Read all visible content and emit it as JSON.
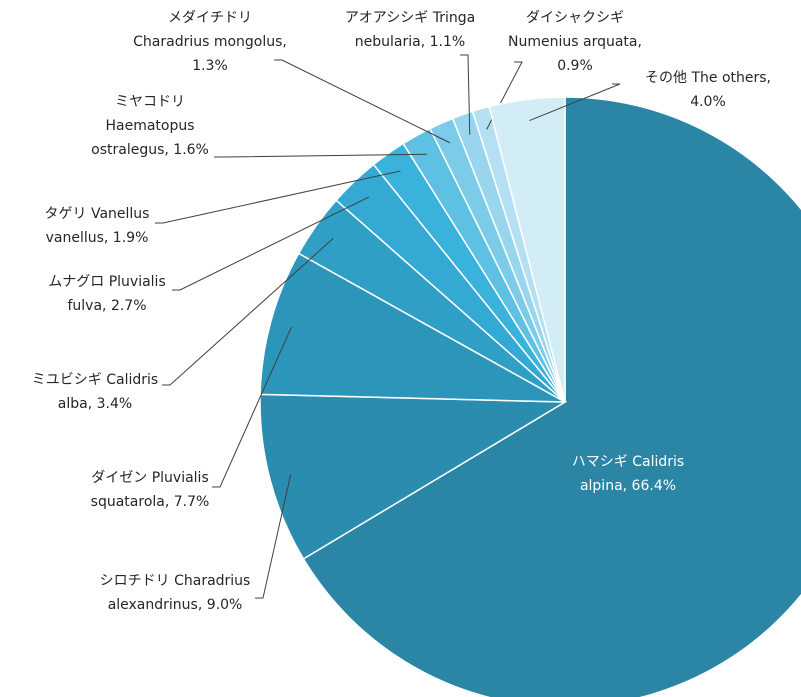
{
  "chart_data": {
    "type": "pie",
    "labels": [
      [
        "ハマシギ Calidris",
        "alpina, 66.4%"
      ],
      [
        "シロチドリ Charadrius",
        "alexandrinus, 9.0%"
      ],
      [
        "ダイゼン Pluvialis",
        "squatarola, 7.7%"
      ],
      [
        "ミユビシギ Calidris",
        "alba, 3.4%"
      ],
      [
        "ムナグロ Pluvialis",
        "fulva, 2.7%"
      ],
      [
        "タゲリ Vanellus",
        "vanellus, 1.9%"
      ],
      [
        "ミヤコドリ",
        "Haematopus",
        "ostralegus, 1.6%"
      ],
      [
        "メダイチドリ",
        "Charadrius mongolus,",
        "1.3%"
      ],
      [
        "アオアシシギ Tringa",
        "nebularia, 1.1%"
      ],
      [
        "ダイシャクシギ",
        "Numenius arquata,",
        "0.9%"
      ],
      [
        "その他 The others,",
        "4.0%"
      ]
    ],
    "values": [
      66.4,
      9.0,
      7.7,
      3.4,
      2.7,
      1.9,
      1.6,
      1.3,
      1.1,
      0.9,
      4.0
    ],
    "colors": [
      "#2b86a5",
      "#2a8db0",
      "#2c95ba",
      "#2f9fc6",
      "#33a9d3",
      "#3ab3dc",
      "#5ec0e3",
      "#7ccbe9",
      "#99d6ee",
      "#b3e0f2",
      "#d3edf7"
    ]
  }
}
